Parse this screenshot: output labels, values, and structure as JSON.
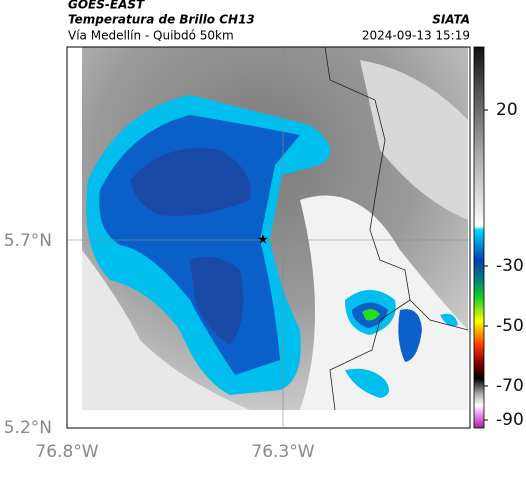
{
  "header": {
    "product": "GOES-EAST",
    "title": "Temperatura de Brillo CH13",
    "subtitle": "Vía Medellín - Quibdó 50km",
    "source": "SIATA",
    "datetime": "2024-09-13 15:19"
  },
  "map": {
    "xticks": [
      "76.8°W",
      "76.3°W"
    ],
    "yticks": [
      "5.7°N",
      "5.2°N"
    ]
  },
  "colorbar": {
    "ticks": [
      "20",
      "-30",
      "-50",
      "-70",
      "-90"
    ]
  }
}
